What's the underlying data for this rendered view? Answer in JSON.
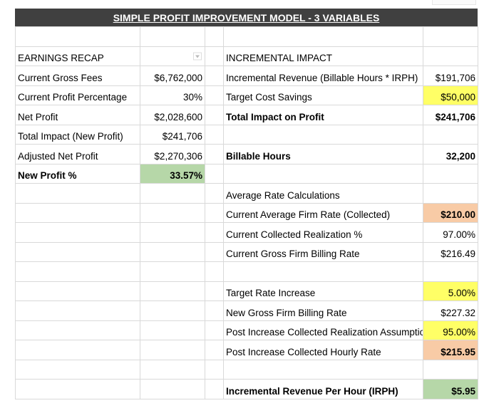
{
  "title": "SIMPLE PROFIT IMPROVEMENT MODEL - 3 VARIABLES",
  "left": {
    "header": "EARNINGS RECAP",
    "rows": [
      {
        "label": "Current Gross Fees",
        "value": "$6,762,000"
      },
      {
        "label": "Current Profit Percentage",
        "value": "30%"
      },
      {
        "label": "Net Profit",
        "value": "$2,028,600"
      },
      {
        "label": "Total Impact (New Profit)",
        "value": "$241,706"
      },
      {
        "label": "Adjusted Net Profit",
        "value": "$2,270,306"
      },
      {
        "label": "New Profit %",
        "value": "33.57%"
      }
    ]
  },
  "right": {
    "header": "INCREMENTAL IMPACT",
    "incremental_revenue": {
      "label": "Incremental Revenue (Billable Hours * IRPH)",
      "value": "$191,706"
    },
    "target_cost_savings": {
      "label": "Target Cost Savings",
      "value": "$50,000"
    },
    "total_impact": {
      "label": "Total Impact on Profit",
      "value": "$241,706"
    },
    "billable_hours": {
      "label": "Billable Hours",
      "value": "32,200"
    },
    "avg_rate_header": "Average Rate Calculations",
    "current_avg_rate": {
      "label": "Current Average Firm Rate (Collected)",
      "value": "$210.00"
    },
    "current_realization": {
      "label": "Current Collected Realization %",
      "value": "97.00%"
    },
    "current_gross_rate": {
      "label": "Current Gross Firm Billing Rate",
      "value": "$216.49"
    },
    "target_rate_increase": {
      "label": "Target Rate Increase",
      "value": "5.00%"
    },
    "new_gross_rate": {
      "label": "New Gross Firm Billing Rate",
      "value": "$227.32"
    },
    "post_realization": {
      "label": "Post Increase Collected Realization Assumption",
      "value": "95.00%"
    },
    "post_hourly_rate": {
      "label": "Post Increase Collected Hourly Rate",
      "value": "$215.95"
    },
    "irph": {
      "label": "Incremental Revenue Per Hour (IRPH)",
      "value": "$5.95"
    }
  },
  "colors": {
    "input_yellow": "#ffff66",
    "highlight_orange": "#f8cba6",
    "result_green": "#b6d7a8"
  }
}
